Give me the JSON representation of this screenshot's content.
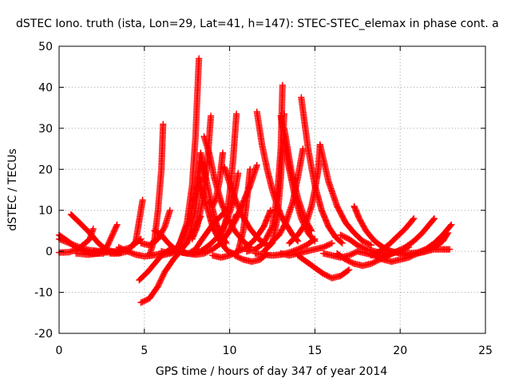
{
  "chart_data": {
    "type": "scatter",
    "title": "dSTEC Iono. truth (ista, Lon=29, Lat=41, h=147): STEC-STEC_elemax in phase cont. a",
    "xlabel": "GPS time / hours of day 347 of year 2014",
    "ylabel": "dSTEC  / TECUs",
    "xlim": [
      0,
      25
    ],
    "ylim": [
      -20,
      50
    ],
    "x_ticks": [
      0,
      5,
      10,
      15,
      20,
      25
    ],
    "y_ticks": [
      -20,
      -10,
      0,
      10,
      20,
      30,
      40,
      50
    ],
    "x_tick_labels": [
      "0",
      "5",
      "10",
      "15",
      "20",
      "25"
    ],
    "y_tick_labels": [
      "-20",
      "-10",
      "0",
      "10",
      "20",
      "30",
      "40",
      "50"
    ],
    "grid": true,
    "legend": "none",
    "marker": "plus",
    "color": "#ff0000",
    "series": [
      {
        "x": [
          0.0,
          0.5,
          1.0,
          1.5,
          2.0,
          2.6
        ],
        "y": [
          4.0,
          2.5,
          1.0,
          0.0,
          -0.5,
          -0.5
        ]
      },
      {
        "x": [
          0.0,
          0.6,
          1.2,
          1.8,
          2.5,
          3.2,
          3.6
        ],
        "y": [
          3.0,
          2.0,
          1.0,
          0.3,
          0.0,
          -0.2,
          -0.3
        ]
      },
      {
        "x": [
          0.0,
          0.6,
          1.2,
          1.8,
          2.0
        ],
        "y": [
          -0.3,
          -0.2,
          0.8,
          3.0,
          5.5
        ]
      },
      {
        "x": [
          0.7,
          1.2,
          1.8,
          2.3,
          2.8,
          3.5
        ],
        "y": [
          9.0,
          7.0,
          4.5,
          2.0,
          0.3,
          -0.3
        ]
      },
      {
        "x": [
          1.0,
          1.7,
          2.3,
          2.8,
          3.4
        ],
        "y": [
          -0.5,
          -0.8,
          -0.5,
          1.0,
          6.5
        ]
      },
      {
        "x": [
          2.0,
          2.6,
          3.2,
          3.7,
          4.2,
          4.8
        ],
        "y": [
          0.0,
          -0.3,
          -0.1,
          0.3,
          1.0,
          3.0
        ]
      },
      {
        "x": [
          3.5,
          4.0,
          4.5,
          5.0,
          5.5,
          6.0
        ],
        "y": [
          1.0,
          0.0,
          -0.8,
          -1.2,
          -1.0,
          -0.5
        ]
      },
      {
        "x": [
          3.0,
          3.5,
          4.0,
          4.5,
          4.9
        ],
        "y": [
          -0.5,
          -0.5,
          0.0,
          2.5,
          12.5
        ]
      },
      {
        "x": [
          4.7,
          5.2,
          5.6,
          6.0,
          6.5
        ],
        "y": [
          -7.0,
          -5.0,
          -3.0,
          -1.0,
          0.5
        ]
      },
      {
        "x": [
          4.8,
          5.3,
          5.8,
          6.2,
          6.7,
          7.2,
          7.6,
          8.0,
          8.3
        ],
        "y": [
          -12.5,
          -11.5,
          -8.5,
          -5.0,
          -2.0,
          0.5,
          3.0,
          6.0,
          8.5
        ]
      },
      {
        "x": [
          4.8,
          5.3,
          5.8,
          6.2,
          6.5
        ],
        "y": [
          2.0,
          1.5,
          3.0,
          6.0,
          10.0
        ]
      },
      {
        "x": [
          5.3,
          5.6,
          5.8,
          6.0,
          6.1
        ],
        "y": [
          -1.0,
          3.0,
          10.0,
          20.0,
          31.0
        ]
      },
      {
        "x": [
          5.6,
          6.0,
          6.4,
          6.8,
          7.2,
          7.6,
          8.0,
          8.4,
          9.0,
          9.8
        ],
        "y": [
          5.0,
          4.0,
          2.0,
          0.5,
          -0.3,
          -0.5,
          0.5,
          3.0,
          6.5,
          10.0
        ]
      },
      {
        "x": [
          6.0,
          6.5,
          7.0,
          7.5,
          7.8,
          8.0,
          8.2
        ],
        "y": [
          -1.0,
          -0.5,
          1.0,
          7.0,
          16.0,
          28.0,
          47.0
        ]
      },
      {
        "x": [
          6.8,
          7.2,
          7.6,
          8.0,
          8.3
        ],
        "y": [
          0.0,
          3.0,
          7.0,
          14.0,
          24.0
        ]
      },
      {
        "x": [
          6.0,
          6.5,
          7.0,
          7.5,
          8.0,
          8.3
        ],
        "y": [
          0.0,
          -0.5,
          0.0,
          2.0,
          10.0,
          22.0
        ]
      },
      {
        "x": [
          8.2,
          8.5,
          8.8,
          9.0,
          9.3,
          9.6,
          9.9,
          10.2
        ],
        "y": [
          18.0,
          13.0,
          9.0,
          6.0,
          3.5,
          1.5,
          0.0,
          -0.5
        ]
      },
      {
        "x": [
          8.3,
          8.6,
          8.9,
          9.2,
          9.5,
          9.8
        ],
        "y": [
          24.0,
          18.0,
          12.0,
          7.0,
          4.0,
          2.0
        ]
      },
      {
        "x": [
          7.8,
          8.1,
          8.4,
          8.7,
          8.9
        ],
        "y": [
          3.0,
          6.0,
          12.0,
          22.0,
          33.0
        ]
      },
      {
        "x": [
          8.5,
          8.8,
          9.1,
          9.5,
          9.9,
          10.3,
          10.8,
          11.2
        ],
        "y": [
          28.0,
          24.0,
          18.0,
          12.0,
          8.0,
          5.0,
          2.5,
          1.0
        ]
      },
      {
        "x": [
          8.8,
          9.0,
          9.2,
          9.4,
          9.6
        ],
        "y": [
          12.0,
          11.0,
          13.0,
          17.0,
          24.0
        ]
      },
      {
        "x": [
          7.8,
          8.3,
          8.8,
          9.3,
          9.8,
          10.2,
          10.5
        ],
        "y": [
          -0.5,
          0.0,
          1.5,
          3.5,
          7.0,
          12.0,
          19.0
        ]
      },
      {
        "x": [
          7.0,
          7.5,
          8.0,
          8.5,
          9.0,
          9.5,
          10.0,
          10.4
        ],
        "y": [
          0.0,
          -0.5,
          -0.8,
          -0.5,
          0.5,
          2.0,
          5.0,
          9.0
        ]
      },
      {
        "x": [
          9.5,
          9.8,
          10.0,
          10.2,
          10.4
        ],
        "y": [
          3.0,
          8.0,
          14.0,
          22.0,
          33.5
        ]
      },
      {
        "x": [
          9.7,
          10.2,
          10.7,
          11.2,
          11.7,
          12.2
        ],
        "y": [
          20.5,
          14.0,
          9.0,
          5.5,
          3.0,
          1.5
        ]
      },
      {
        "x": [
          10.0,
          10.4,
          10.8,
          11.2,
          11.6
        ],
        "y": [
          5.0,
          8.0,
          12.0,
          16.0,
          21.0
        ]
      },
      {
        "x": [
          9.0,
          9.5,
          10.0,
          10.5,
          10.8,
          11.0,
          11.2
        ],
        "y": [
          -1.0,
          -1.5,
          -1.0,
          0.0,
          5.0,
          12.0,
          20.0
        ]
      },
      {
        "x": [
          10.3,
          10.8,
          11.3,
          11.8,
          12.2
        ],
        "y": [
          -1.0,
          -2.0,
          -2.5,
          -2.0,
          -0.5
        ]
      },
      {
        "x": [
          10.5,
          11.0,
          11.5,
          12.0,
          12.4
        ],
        "y": [
          0.0,
          1.0,
          3.0,
          6.0,
          10.0
        ]
      },
      {
        "x": [
          11.6,
          11.9,
          12.2,
          12.5,
          12.8,
          13.1,
          13.4,
          13.7,
          14.0
        ],
        "y": [
          34.0,
          26.0,
          20.0,
          15.0,
          11.0,
          8.0,
          6.0,
          4.0,
          2.5
        ]
      },
      {
        "x": [
          11.0,
          11.5,
          12.0,
          12.5,
          12.8,
          13.0,
          13.1
        ],
        "y": [
          0.0,
          0.5,
          2.0,
          6.0,
          14.0,
          25.0,
          40.5
        ]
      },
      {
        "x": [
          12.0,
          12.5,
          12.8,
          13.0,
          13.2
        ],
        "y": [
          0.0,
          2.0,
          8.0,
          18.0,
          33.5
        ]
      },
      {
        "x": [
          13.0,
          13.4,
          13.8,
          14.2,
          14.6,
          15.0
        ],
        "y": [
          33.0,
          22.0,
          14.0,
          8.0,
          4.5,
          2.5
        ]
      },
      {
        "x": [
          13.2,
          13.6,
          14.0,
          14.4,
          14.8
        ],
        "y": [
          30.0,
          20.0,
          13.0,
          8.0,
          5.0
        ]
      },
      {
        "x": [
          12.4,
          12.9,
          13.3,
          13.7,
          14.0,
          14.3
        ],
        "y": [
          2.0,
          4.0,
          7.0,
          12.0,
          18.0,
          25.0
        ]
      },
      {
        "x": [
          14.2,
          14.6,
          15.0,
          15.4,
          15.8,
          16.2,
          16.6
        ],
        "y": [
          37.5,
          25.0,
          16.0,
          10.0,
          6.0,
          3.5,
          2.0
        ]
      },
      {
        "x": [
          13.5,
          14.0,
          14.5,
          14.8,
          15.0,
          15.2,
          15.3
        ],
        "y": [
          2.0,
          4.0,
          7.0,
          11.0,
          15.0,
          20.0,
          26.0
        ]
      },
      {
        "x": [
          15.3,
          15.8,
          16.3,
          16.8,
          17.3,
          17.8,
          18.3
        ],
        "y": [
          26.0,
          17.0,
          11.0,
          7.0,
          4.5,
          2.5,
          1.5
        ]
      },
      {
        "x": [
          14.0,
          14.5,
          15.0,
          15.5,
          16.0,
          16.5,
          17.0
        ],
        "y": [
          -1.0,
          -2.5,
          -4.0,
          -5.5,
          -6.5,
          -6.0,
          -4.5
        ]
      },
      {
        "x": [
          11.5,
          12.0,
          12.5,
          13.0,
          13.5,
          14.0,
          14.5,
          15.0
        ],
        "y": [
          -0.5,
          -0.8,
          -1.0,
          -0.8,
          -0.3,
          0.5,
          1.5,
          3.0
        ]
      },
      {
        "x": [
          13.0,
          13.5,
          14.0,
          14.5,
          15.0,
          15.5,
          16.0
        ],
        "y": [
          -0.5,
          -1.0,
          -0.5,
          0.0,
          0.5,
          1.0,
          2.0
        ]
      },
      {
        "x": [
          15.5,
          16.0,
          16.5,
          17.0,
          17.5
        ],
        "y": [
          -0.5,
          -1.0,
          -1.5,
          -1.0,
          0.0
        ]
      },
      {
        "x": [
          16.3,
          16.8,
          17.3,
          17.8,
          18.3,
          18.8,
          19.3,
          19.8
        ],
        "y": [
          -0.5,
          -2.0,
          -3.0,
          -3.5,
          -3.0,
          -2.0,
          -1.0,
          0.0
        ]
      },
      {
        "x": [
          17.3,
          17.6,
          18.0,
          18.5,
          19.0,
          19.5,
          20.0
        ],
        "y": [
          11.0,
          8.0,
          5.0,
          2.5,
          1.0,
          0.0,
          -0.5
        ]
      },
      {
        "x": [
          16.5,
          17.0,
          17.5,
          18.0,
          18.5,
          19.0,
          19.5
        ],
        "y": [
          4.0,
          3.0,
          1.5,
          0.5,
          0.0,
          -0.5,
          -0.5
        ]
      },
      {
        "x": [
          17.5,
          18.0,
          18.5,
          19.0,
          19.5,
          20.0,
          20.5
        ],
        "y": [
          0.0,
          -0.5,
          -1.0,
          -1.0,
          -0.5,
          0.0,
          1.0
        ]
      },
      {
        "x": [
          18.5,
          19.0,
          19.5,
          20.0,
          20.5,
          21.0,
          21.5,
          22.0
        ],
        "y": [
          -1.0,
          -2.0,
          -2.5,
          -2.0,
          -1.5,
          -0.5,
          0.5,
          1.5
        ]
      },
      {
        "x": [
          18.3,
          18.8,
          19.3,
          19.8,
          20.3,
          20.8
        ],
        "y": [
          -1.0,
          0.0,
          1.5,
          3.5,
          5.5,
          8.0
        ]
      },
      {
        "x": [
          19.0,
          19.5,
          20.0,
          20.5,
          21.0,
          21.5,
          22.0,
          22.5,
          23.0
        ],
        "y": [
          0.5,
          0.0,
          -0.5,
          -0.5,
          -0.3,
          0.5,
          2.0,
          4.0,
          6.5
        ]
      },
      {
        "x": [
          20.0,
          20.5,
          21.0,
          21.5,
          22.0,
          22.5,
          22.8
        ],
        "y": [
          -0.5,
          -1.0,
          -0.5,
          0.0,
          1.0,
          2.5,
          4.5
        ]
      },
      {
        "x": [
          21.0,
          21.5,
          22.0,
          22.5,
          22.9
        ],
        "y": [
          -0.5,
          0.0,
          0.5,
          0.5,
          0.5
        ]
      },
      {
        "x": [
          19.8,
          20.3,
          20.8,
          21.3,
          21.8,
          22.0
        ],
        "y": [
          0.0,
          1.0,
          2.5,
          4.5,
          7.0,
          8.0
        ]
      }
    ]
  }
}
